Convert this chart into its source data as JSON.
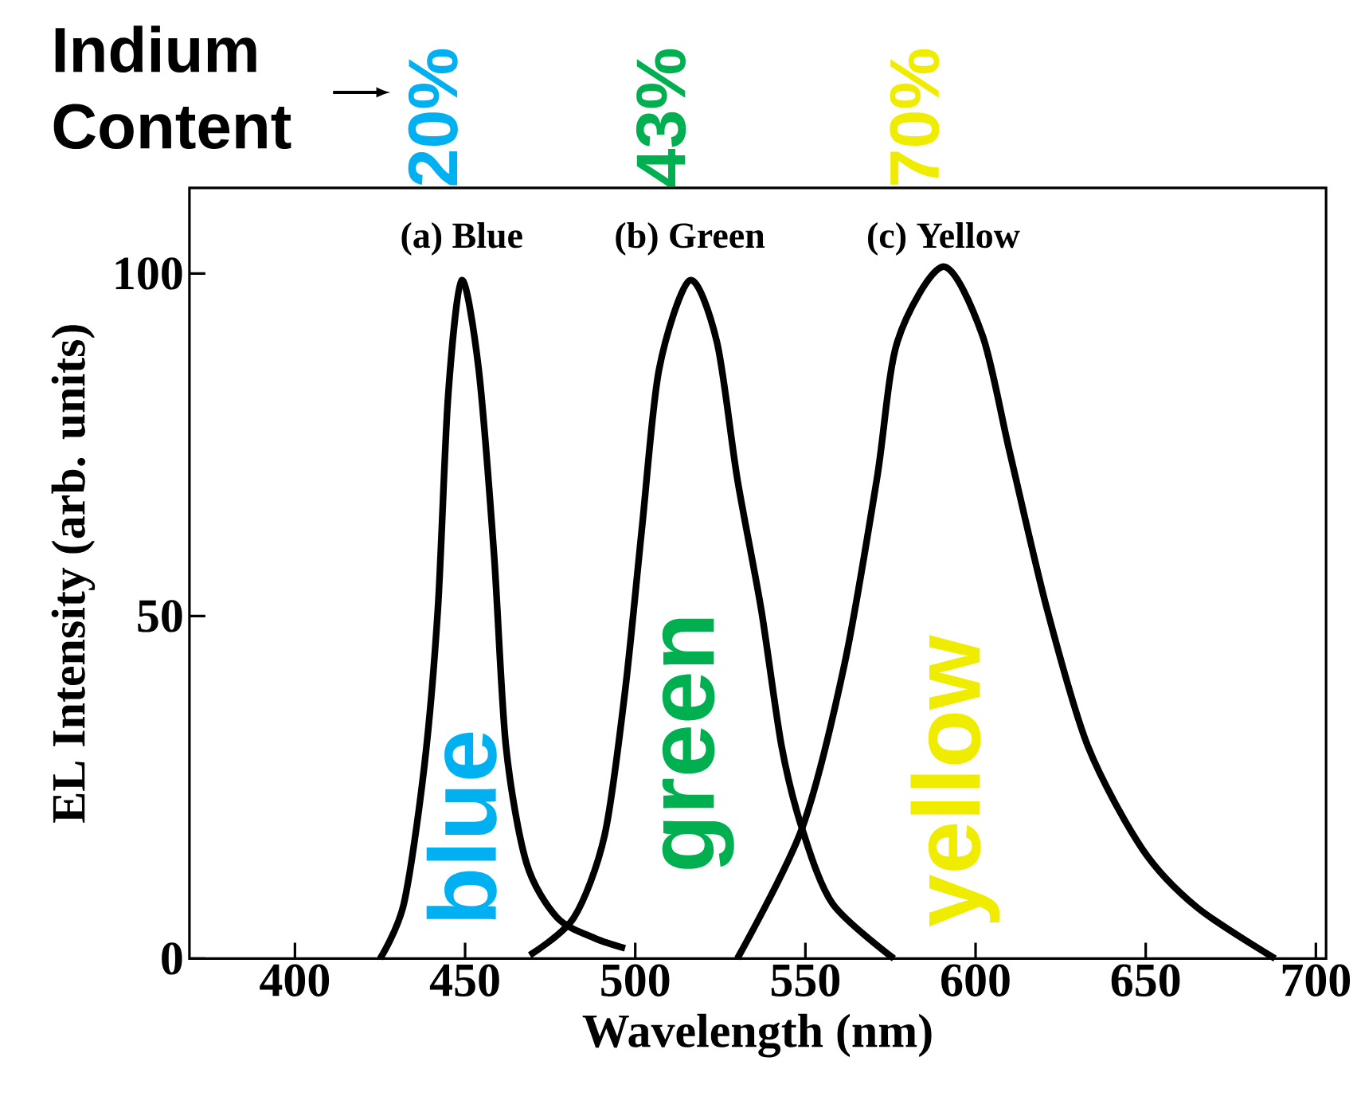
{
  "chart_data": {
    "type": "line",
    "xlabel": "Wavelength (nm)",
    "ylabel": "EL Intensity (arb. units)",
    "xlim": [
      369,
      703
    ],
    "xticks": [
      400,
      450,
      500,
      550,
      600,
      650,
      700
    ],
    "ylim": [
      0,
      112.5
    ],
    "yticks": [
      0,
      50,
      100
    ],
    "series": [
      {
        "name": "(a) Blue",
        "color": "#000000",
        "x": [
          425,
          432,
          438,
          442,
          445,
          449,
          454,
          458.5,
          462,
          468,
          477,
          488,
          497
        ],
        "values": [
          0,
          8,
          28,
          51,
          82,
          99,
          86,
          59,
          31,
          14,
          6,
          3,
          1.5
        ]
      },
      {
        "name": "(b) Green",
        "color": "#000000",
        "x": [
          469,
          482,
          491,
          497,
          502,
          507,
          516,
          524,
          530,
          537,
          543,
          549,
          558,
          576
        ],
        "values": [
          0.5,
          6,
          18,
          39,
          63,
          86,
          99,
          90,
          70,
          51,
          31,
          19,
          8,
          0
        ]
      },
      {
        "name": "(c) Yellow",
        "color": "#000000",
        "x": [
          530,
          549,
          561.5,
          571,
          577,
          590.5,
          602,
          610,
          621,
          633,
          649,
          665,
          688
        ],
        "values": [
          0,
          19,
          43,
          70,
          90,
          101,
          91,
          74,
          51,
          31,
          16,
          7.5,
          0
        ]
      }
    ],
    "annotations": [
      "Indium Content",
      "20%",
      "43%",
      "70%",
      "blue",
      "green",
      "yellow"
    ]
  }
}
